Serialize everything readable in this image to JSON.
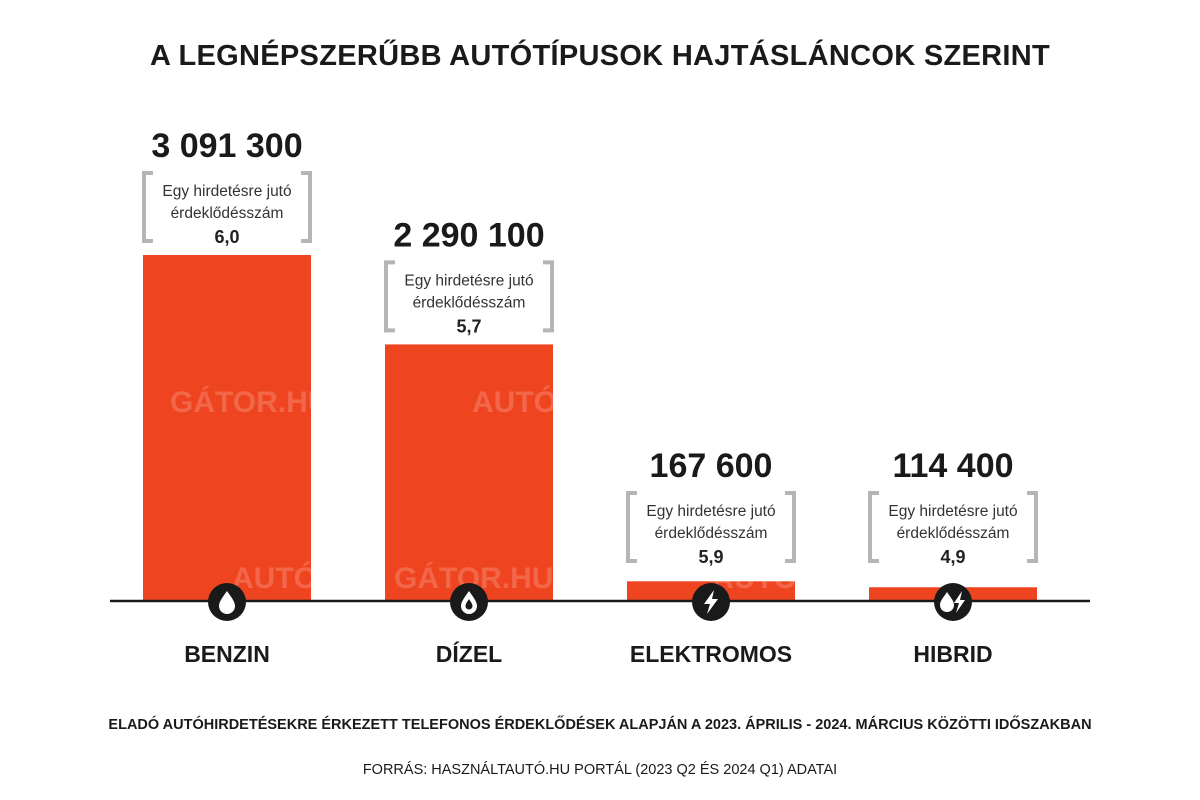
{
  "chart_data": {
    "type": "bar",
    "title": "A LEGNÉPSZERŰBB AUTÓTÍPUSOK HAJTÁSLÁNCOK SZERINT",
    "categories": [
      "BENZIN",
      "DÍZEL",
      "ELEKTROMOS",
      "HIBRID"
    ],
    "values": [
      3091300,
      2290100,
      167600,
      114400
    ],
    "value_labels": [
      "3 091 300",
      "2 290 100",
      "167 600",
      "114 400"
    ],
    "ratio_label": "Egy hirdetésre jutó érdeklődésszám",
    "ratio_label_lines": [
      "Egy hirdetésre jutó",
      "érdeklődésszám"
    ],
    "ratios": [
      "6,0",
      "5,7",
      "5,9",
      "4,9"
    ],
    "icons": [
      "fuel-drop-icon",
      "diesel-drop-icon",
      "lightning-icon",
      "hybrid-drop-lightning-icon"
    ],
    "bar_color": "#ee4520",
    "grid": false,
    "ylim": [
      0,
      3500000
    ],
    "xlabel": "",
    "ylabel": ""
  },
  "watermark": {
    "parts": [
      "AUTÓN",
      "GÁTOR.HU"
    ]
  },
  "footnote": "ELADÓ AUTÓHIRDETÉSEKRE ÉRKEZETT TELEFONOS ÉRDEKLŐDÉSEK ALAPJÁN A 2023. ÁPRILIS - 2024. MÁRCIUS KÖZÖTTI IDŐSZAKBAN",
  "source": "FORRÁS: HASZNÁLTAUTÓ.HU PORTÁL (2023 Q2 ÉS 2024 Q1) ADATAI"
}
